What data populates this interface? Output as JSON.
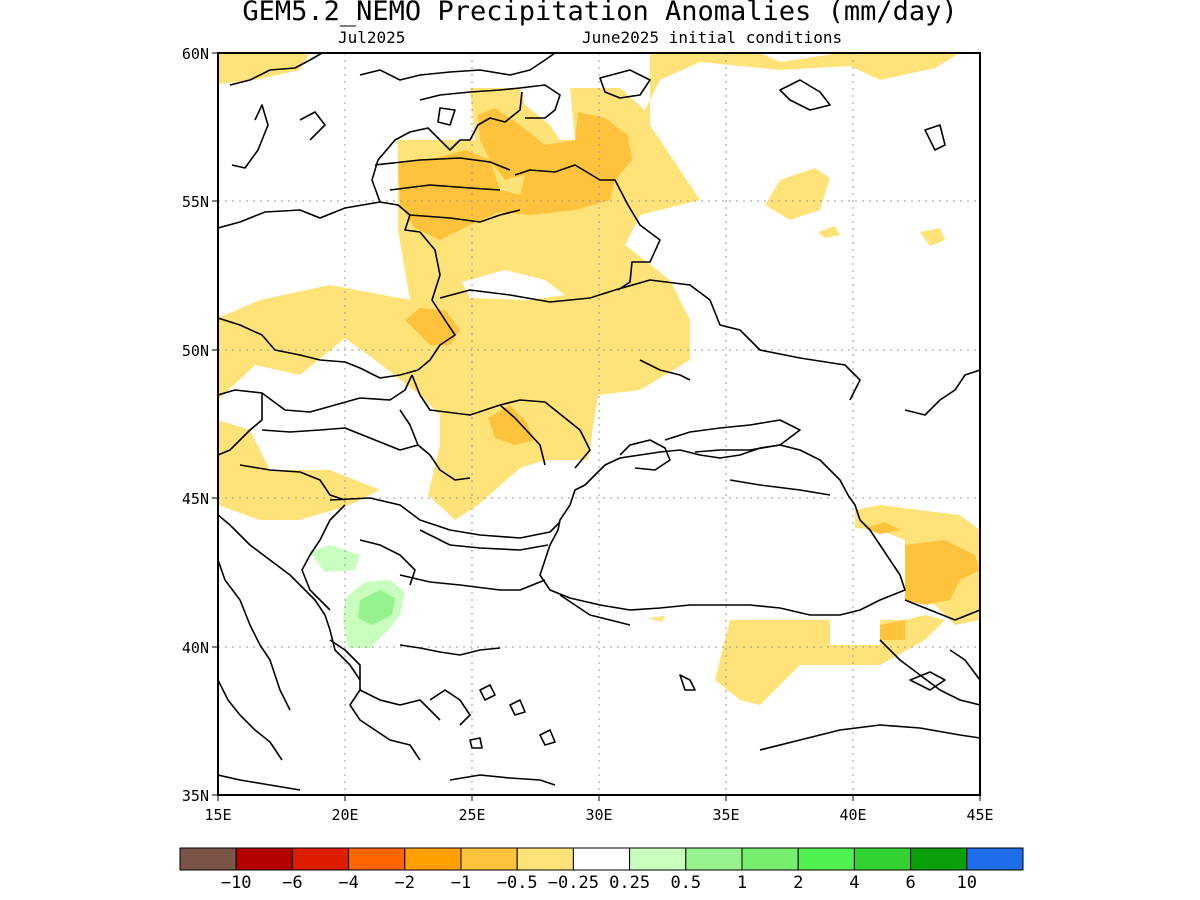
{
  "title": "GEM5.2_NEMO Precipitation Anomalies (mm/day)",
  "subtitle_left": "Jul2025",
  "subtitle_right": "June2025 initial conditions",
  "map": {
    "lon_ticks": [
      "15E",
      "20E",
      "25E",
      "30E",
      "35E",
      "40E",
      "45E"
    ],
    "lat_ticks": [
      "60N",
      "55N",
      "50N",
      "45N",
      "40N",
      "35N"
    ],
    "lon_range": [
      15,
      45
    ],
    "lat_range": [
      35,
      60
    ]
  },
  "colorbar": {
    "colors": [
      "#7a5547",
      "#b40000",
      "#dd1c00",
      "#ff6600",
      "#ffa000",
      "#ffc23c",
      "#ffe278",
      "#ffffff",
      "#c8ffbe",
      "#96f28c",
      "#78ee6e",
      "#50f050",
      "#32d232",
      "#0ba00b",
      "#1e6eeb"
    ],
    "labels": [
      "−10",
      "−6",
      "−4",
      "−2",
      "−1",
      "−0.5",
      "−0.25",
      "0.25",
      "0.5",
      "1",
      "2",
      "4",
      "6",
      "10"
    ]
  }
}
